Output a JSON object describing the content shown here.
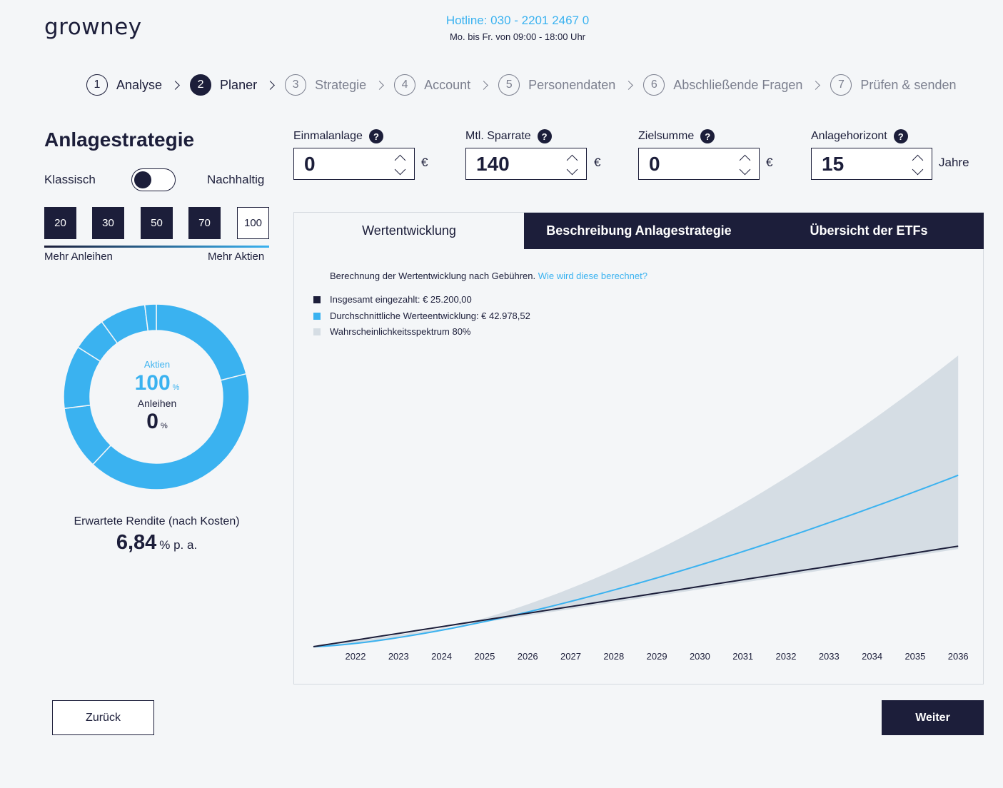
{
  "header": {
    "logo": "growney",
    "hotline": "Hotline: 030 - 2201 2467 0",
    "hours": "Mo. bis Fr. von 09:00 - 18:00 Uhr"
  },
  "steps": [
    {
      "num": "1",
      "label": "Analyse"
    },
    {
      "num": "2",
      "label": "Planer"
    },
    {
      "num": "3",
      "label": "Strategie"
    },
    {
      "num": "4",
      "label": "Account"
    },
    {
      "num": "5",
      "label": "Personendaten"
    },
    {
      "num": "6",
      "label": "Abschließende Fragen"
    },
    {
      "num": "7",
      "label": "Prüfen & senden"
    }
  ],
  "strategy": {
    "title": "Anlagestrategie",
    "toggle_left": "Klassisch",
    "toggle_right": "Nachhaltig",
    "risk_options": [
      "20",
      "30",
      "50",
      "70",
      "100"
    ],
    "risk_selected": "100",
    "risk_left_label": "Mehr Anleihen",
    "risk_right_label": "Mehr Aktien",
    "donut": {
      "stocks_label": "Aktien",
      "stocks_value": "100",
      "bonds_label": "Anleihen",
      "bonds_value": "0",
      "percent_sign": "%",
      "segments_pct": [
        21,
        41,
        11,
        11,
        6,
        8,
        2
      ],
      "color": "#3ab2f0"
    },
    "return_label": "Erwartete Rendite (nach Kosten)",
    "return_value": "6,84",
    "return_unit": "% p. a."
  },
  "fields": {
    "einmal": {
      "label": "Einmalanlage",
      "value": "0",
      "unit": "€"
    },
    "sparrate": {
      "label": "Mtl. Sparrate",
      "value": "140",
      "unit": "€"
    },
    "ziel": {
      "label": "Zielsumme",
      "value": "0",
      "unit": "€"
    },
    "horizont": {
      "label": "Anlagehorizont",
      "value": "15",
      "unit": "Jahre"
    },
    "help": "?"
  },
  "tabs": {
    "wert": "Wertentwicklung",
    "beschreibung": "Beschreibung Anlagestrategie",
    "etfs": "Übersicht der ETFs"
  },
  "chart_data": {
    "type": "area",
    "caption": "Berechnung der Wertentwicklung nach Gebühren.",
    "caption_link": "Wie wird diese berechnet?",
    "legend": [
      {
        "label": "Insgesamt eingezahlt: € 25.200,00",
        "color": "#1c1e3a"
      },
      {
        "label": "Durchschnittliche Werteentwicklung: € 42.978,52",
        "color": "#3ab2f0"
      },
      {
        "label": "Wahrscheinlichkeitsspektrum 80%",
        "color": "#d5dde4"
      }
    ],
    "x": [
      "2022",
      "2023",
      "2024",
      "2025",
      "2026",
      "2027",
      "2028",
      "2029",
      "2030",
      "2031",
      "2032",
      "2033",
      "2034",
      "2035",
      "2036"
    ],
    "start_value": 0,
    "paid_end": 25200,
    "avg_end": 42978.52,
    "upper_end": 73000,
    "lower_end": 24500,
    "ylim": [
      0,
      80000
    ]
  },
  "buttons": {
    "back": "Zurück",
    "next": "Weiter"
  }
}
